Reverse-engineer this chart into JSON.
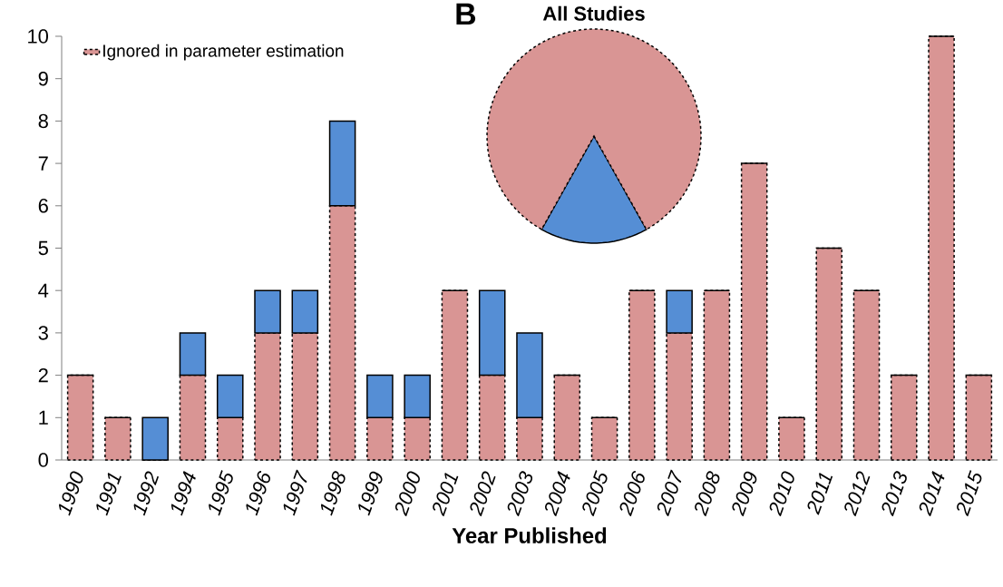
{
  "chart_data": [
    {
      "type": "bar",
      "stacked": true,
      "xlabel": "Year Published",
      "categories": [
        "1990",
        "1991",
        "1992",
        "1994",
        "1995",
        "1996",
        "1997",
        "1998",
        "1999",
        "2000",
        "2001",
        "2002",
        "2003",
        "2004",
        "2005",
        "2006",
        "2007",
        "2008",
        "2009",
        "2010",
        "2011",
        "2012",
        "2013",
        "2014",
        "2015"
      ],
      "series": [
        {
          "name": "Ignored in parameter estimation",
          "color": "#d99594",
          "values": [
            2,
            1,
            0,
            2,
            1,
            3,
            3,
            6,
            1,
            1,
            4,
            2,
            1,
            2,
            1,
            4,
            3,
            4,
            7,
            1,
            5,
            4,
            2,
            10,
            2
          ]
        },
        {
          "color": "#558ed5",
          "values": [
            0,
            0,
            1,
            1,
            1,
            1,
            1,
            2,
            1,
            1,
            0,
            2,
            2,
            0,
            0,
            0,
            1,
            0,
            0,
            0,
            0,
            0,
            0,
            0,
            0
          ]
        }
      ],
      "ylim": [
        0,
        10
      ],
      "yticks": [
        0,
        1,
        2,
        3,
        4,
        5,
        6,
        7,
        8,
        9,
        10
      ],
      "legend": "top left"
    },
    {
      "type": "pie",
      "title": "All Studies",
      "annotations": [
        "B"
      ],
      "categories": [
        null,
        null
      ],
      "values": [
        16.3,
        83.7
      ],
      "colors": [
        "#558ed5",
        "#d99594"
      ]
    }
  ]
}
